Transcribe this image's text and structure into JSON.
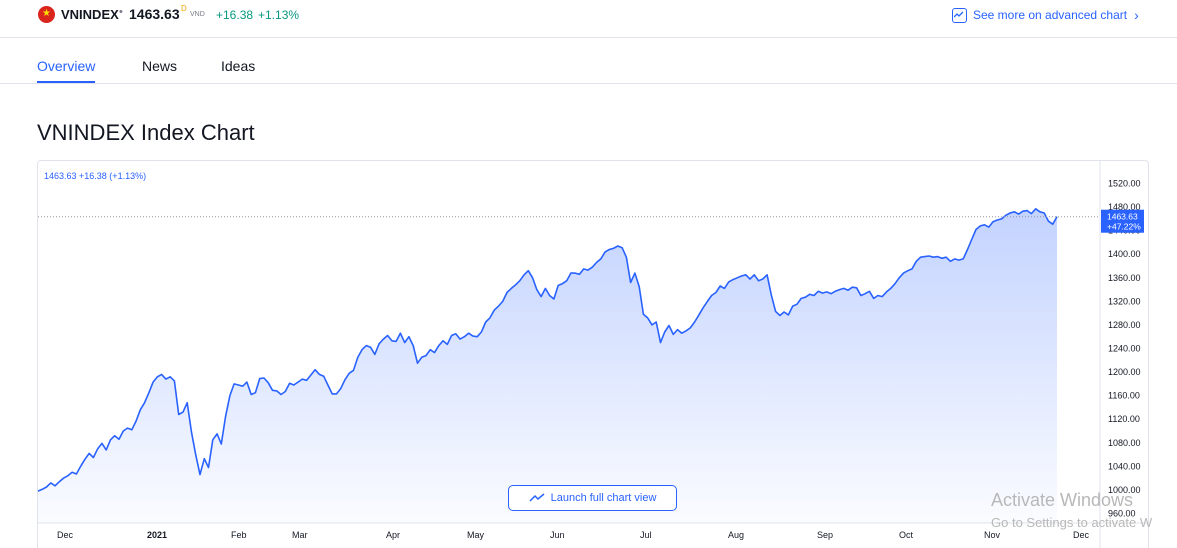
{
  "header": {
    "symbol": "VNINDEX",
    "separator": "•",
    "price": "1463.63",
    "price_flag": "D",
    "currency": "VND",
    "change": "+16.38",
    "change_percent": "+1.13%",
    "advanced_link": "See more on advanced chart",
    "flag_icon": "vietnam-flag"
  },
  "tabs": [
    {
      "label": "Overview",
      "active": true
    },
    {
      "label": "News",
      "active": false
    },
    {
      "label": "Ideas",
      "active": false
    }
  ],
  "page_title": "VNINDEX Index Chart",
  "legend_text": "1463.63  +16.38 (+1.13%)",
  "launch_button": "Launch full chart view",
  "watermark": {
    "line1": "Activate Windows",
    "line2": "Go to Settings to activate W"
  },
  "colors": {
    "accent": "#2962ff",
    "positive": "#089981",
    "line": "#2962ff"
  },
  "chart_data": {
    "type": "area",
    "ylim": [
      960,
      1540
    ],
    "y_ticks": [
      "1520.00",
      "1480.00",
      "1440.00",
      "1400.00",
      "1360.00",
      "1320.00",
      "1280.00",
      "1240.00",
      "1200.00",
      "1160.00",
      "1120.00",
      "1080.00",
      "1040.00",
      "1000.00",
      "960.00"
    ],
    "x_labels": [
      "Dec",
      "2021",
      "Feb",
      "Mar",
      "Apr",
      "May",
      "Jun",
      "Jul",
      "Aug",
      "Sep",
      "Oct",
      "Nov",
      "Dec"
    ],
    "last_price_label": "1463.63",
    "last_change_label": "+47.22%",
    "grid": false,
    "series": [
      {
        "values": [
          998,
          1001,
          1005,
          1012,
          1007,
          1014,
          1020,
          1024,
          1030,
          1027,
          1040,
          1052,
          1062,
          1055,
          1070,
          1079,
          1068,
          1085,
          1092,
          1086,
          1100,
          1105,
          1102,
          1117,
          1136,
          1148,
          1165,
          1183,
          1192,
          1196,
          1188,
          1192,
          1185,
          1128,
          1132,
          1148,
          1098,
          1059,
          1026,
          1053,
          1038,
          1085,
          1095,
          1078,
          1125,
          1160,
          1180,
          1178,
          1176,
          1183,
          1162,
          1165,
          1189,
          1190,
          1182,
          1169,
          1168,
          1162,
          1167,
          1181,
          1178,
          1183,
          1188,
          1186,
          1195,
          1204,
          1196,
          1193,
          1178,
          1163,
          1163,
          1172,
          1187,
          1198,
          1203,
          1225,
          1238,
          1245,
          1242,
          1230,
          1248,
          1256,
          1262,
          1253,
          1252,
          1266,
          1250,
          1260,
          1245,
          1215,
          1225,
          1228,
          1238,
          1233,
          1245,
          1253,
          1247,
          1262,
          1265,
          1256,
          1260,
          1266,
          1261,
          1260,
          1268,
          1285,
          1292,
          1305,
          1312,
          1320,
          1335,
          1342,
          1348,
          1355,
          1365,
          1372,
          1360,
          1340,
          1328,
          1342,
          1330,
          1324,
          1347,
          1350,
          1355,
          1368,
          1368,
          1366,
          1375,
          1373,
          1378,
          1386,
          1392,
          1404,
          1408,
          1410,
          1414,
          1411,
          1395,
          1352,
          1368,
          1345,
          1298,
          1292,
          1280,
          1285,
          1250,
          1268,
          1279,
          1264,
          1272,
          1266,
          1270,
          1275,
          1285,
          1297,
          1309,
          1320,
          1330,
          1335,
          1346,
          1342,
          1353,
          1357,
          1360,
          1363,
          1365,
          1358,
          1365,
          1355,
          1358,
          1365,
          1331,
          1303,
          1296,
          1302,
          1297,
          1312,
          1315,
          1325,
          1327,
          1332,
          1330,
          1337,
          1334,
          1336,
          1333,
          1337,
          1340,
          1342,
          1339,
          1344,
          1343,
          1330,
          1333,
          1337,
          1325,
          1330,
          1328,
          1336,
          1342,
          1350,
          1360,
          1368,
          1372,
          1375,
          1388,
          1395,
          1396,
          1397,
          1395,
          1396,
          1393,
          1395,
          1388,
          1392,
          1390,
          1392,
          1408,
          1425,
          1442,
          1448,
          1450,
          1446,
          1455,
          1458,
          1460,
          1466,
          1470,
          1472,
          1468,
          1473,
          1474,
          1469,
          1477,
          1472,
          1470,
          1456,
          1451,
          1463.63
        ]
      }
    ]
  }
}
